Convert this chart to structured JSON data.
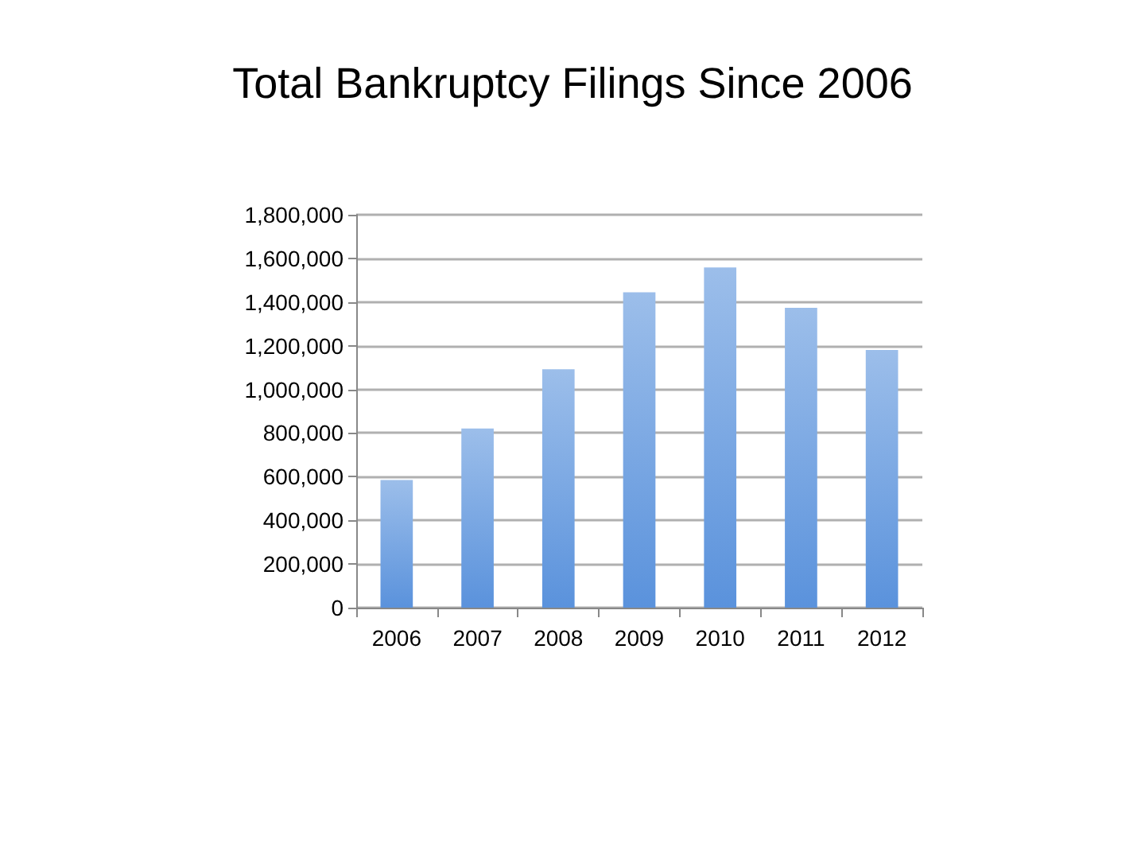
{
  "chart_data": {
    "type": "bar",
    "title": "Total Bankruptcy Filings Since 2006",
    "categories": [
      "2006",
      "2007",
      "2008",
      "2009",
      "2010",
      "2011",
      "2012"
    ],
    "values": [
      585000,
      821000,
      1092000,
      1445000,
      1559000,
      1374000,
      1181000
    ],
    "color": "#5a92dc",
    "ylim": [
      0,
      1800000
    ],
    "yticks": [
      0,
      {
        "value": 200000,
        "label": "200,000"
      },
      {
        "value": 400000,
        "label": "400,000"
      },
      {
        "value": 600000,
        "label": "600,000"
      },
      {
        "value": 800000,
        "label": "800,000"
      },
      {
        "value": 1000000,
        "label": "1,000,000"
      },
      {
        "value": 1200000,
        "label": "1,200,000"
      },
      {
        "value": 1400000,
        "label": "1,400,000"
      },
      {
        "value": 1600000,
        "label": "1,600,000"
      },
      {
        "value": 1800000,
        "label": "1,800,000"
      }
    ],
    "grid": "y"
  }
}
